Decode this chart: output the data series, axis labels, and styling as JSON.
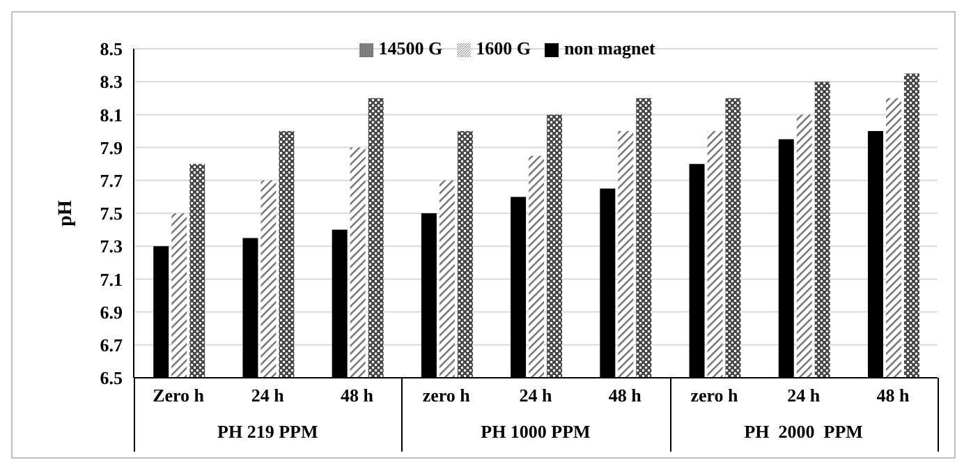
{
  "chart_data": {
    "type": "bar",
    "ylabel": "pH",
    "categories": [
      "Zero  h",
      "24 h",
      "48 h",
      "zero  h",
      "24 h",
      "48 h",
      "zero  h",
      "24 h",
      "48 h"
    ],
    "series": [
      {
        "name": "non magnet",
        "color": "#000000",
        "values": [
          7.3,
          7.35,
          7.4,
          7.5,
          7.6,
          7.65,
          7.8,
          7.95,
          8.0
        ]
      },
      {
        "name": "1600 G",
        "color": "#6e6e6e",
        "values": [
          7.5,
          7.7,
          7.9,
          7.7,
          7.85,
          8.0,
          8.0,
          8.1,
          8.2
        ]
      },
      {
        "name": "14500 G",
        "color": "#4a4a4a",
        "values": [
          7.8,
          8.0,
          8.2,
          8.0,
          8.1,
          8.2,
          8.2,
          8.3,
          8.35
        ]
      }
    ],
    "annotations": [
      "PH 219 PPM",
      "PH 1000 PPM",
      "PH  2000  PPM"
    ],
    "ylim": [
      6.5,
      8.5
    ],
    "yticks": [
      6.5,
      6.7,
      6.9,
      7.1,
      7.3,
      7.5,
      7.7,
      7.9,
      8.1,
      8.3,
      8.5
    ],
    "grid": "y",
    "legend": "top"
  }
}
